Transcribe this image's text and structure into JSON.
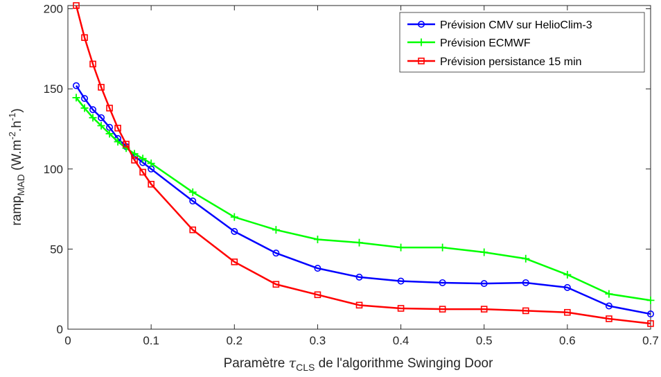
{
  "chart_data": {
    "type": "line",
    "title": "",
    "xlabel": {
      "prefix": "Paramètre ",
      "symbol": "τ",
      "subscript": "CLS",
      "suffix": " de l'algorithme Swinging Door"
    },
    "ylabel": {
      "prefix": "ramp",
      "subscript": "MAD",
      "unit_open": " (W.m",
      "sup1": "-2",
      "unit_mid": ".h",
      "sup2": "-1",
      "unit_close": ")"
    },
    "xlim": [
      0,
      0.7
    ],
    "ylim": [
      0,
      202
    ],
    "xticks": [
      0,
      0.1,
      0.2,
      0.3,
      0.4,
      0.5,
      0.6,
      0.7
    ],
    "xtick_labels": [
      "0",
      "0.1",
      "0.2",
      "0.3",
      "0.4",
      "0.5",
      "0.6",
      "0.7"
    ],
    "yticks": [
      0,
      50,
      100,
      150,
      200
    ],
    "ytick_labels": [
      "0",
      "50",
      "100",
      "150",
      "200"
    ],
    "grid": false,
    "legend_position": "top-right",
    "x": [
      0.01,
      0.02,
      0.03,
      0.04,
      0.05,
      0.06,
      0.07,
      0.08,
      0.09,
      0.1,
      0.15,
      0.2,
      0.25,
      0.3,
      0.35,
      0.4,
      0.45,
      0.5,
      0.55,
      0.6,
      0.65,
      0.7
    ],
    "series": [
      {
        "name": "Prévision CMV sur HelioClim-3",
        "color": "#0000ff",
        "marker": "circle",
        "values": [
          152,
          144,
          137,
          132,
          126,
          119,
          114,
          108,
          104,
          100,
          80,
          61,
          47.5,
          38,
          32.5,
          30,
          29,
          28.5,
          29,
          26,
          14.5,
          9.5
        ]
      },
      {
        "name": "Prévision ECMWF",
        "color": "#00ff00",
        "marker": "plus",
        "values": [
          144.5,
          138,
          132,
          127,
          122,
          117,
          113,
          109.5,
          106.5,
          103.5,
          85.5,
          70,
          62,
          56,
          54,
          51,
          51,
          48,
          44,
          34,
          22,
          18
        ]
      },
      {
        "name": "Prévision persistance 15 min",
        "color": "#ff0000",
        "marker": "square",
        "values": [
          202,
          182,
          165.5,
          151,
          138,
          125.5,
          115.5,
          105.5,
          98,
          90.5,
          62,
          42,
          28,
          21.5,
          15,
          13,
          12.5,
          12.5,
          11.5,
          10.5,
          6.5,
          3.5
        ]
      }
    ]
  }
}
